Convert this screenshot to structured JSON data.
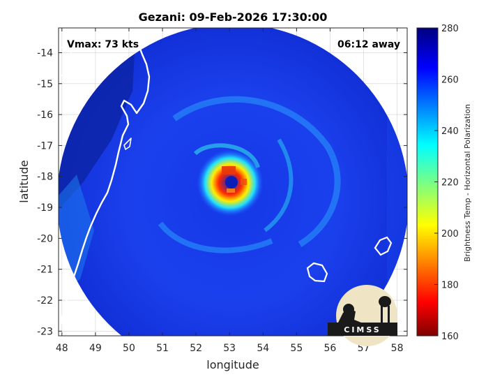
{
  "chart_data": {
    "type": "heatmap",
    "title": "Gezani: 09-Feb-2026 17:30:00",
    "xlabel": "longitude",
    "ylabel": "latitude",
    "xlim": [
      47.9,
      58.3
    ],
    "ylim": [
      -23.15,
      -13.2
    ],
    "xticks": [
      "48",
      "49",
      "50",
      "51",
      "52",
      "53",
      "54",
      "55",
      "56",
      "57",
      "58"
    ],
    "yticks": [
      "-14",
      "-15",
      "-16",
      "-17",
      "-18",
      "-19",
      "-20",
      "-21",
      "-22",
      "-23"
    ],
    "grid": true,
    "annotations": {
      "vmax": "Vmax: 73 kts",
      "time_away": "06:12 away"
    },
    "colorbar": {
      "label": "Brightness Temp - Horizontal Polarization",
      "range": [
        160,
        280
      ],
      "ticks": [
        "160",
        "180",
        "200",
        "220",
        "240",
        "260",
        "280"
      ],
      "colormap": "jet"
    },
    "storm_center": {
      "lon": 53.2,
      "lat": -18.1
    },
    "colors": {
      "background_field": "#1a3ef0",
      "eye_core": "#e02010",
      "coastline": "#ffffff"
    },
    "logo_text": "CIMSS"
  }
}
